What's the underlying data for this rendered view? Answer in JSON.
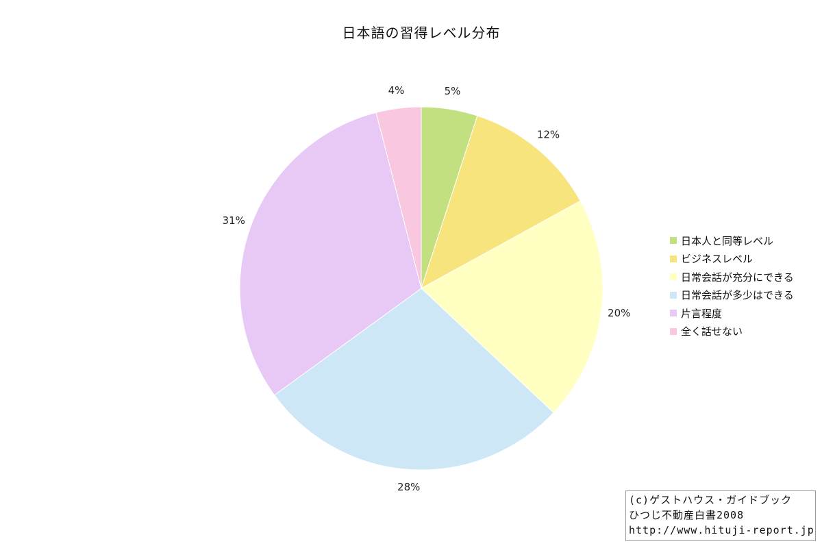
{
  "chart_data": {
    "type": "pie",
    "title": "日本語の習得レベル分布",
    "start_angle_deg": 0,
    "direction": "clockwise",
    "legend_position": "right",
    "slices": [
      {
        "name": "日本人と同等レベル",
        "value": 5,
        "label": "5%",
        "color": "#c2e07f"
      },
      {
        "name": "ビジネスレベル",
        "value": 12,
        "label": "12%",
        "color": "#f7e47c"
      },
      {
        "name": "日常会話が充分にできる",
        "value": 20,
        "label": "20%",
        "color": "#ffffc2"
      },
      {
        "name": "日常会話が多少はできる",
        "value": 28,
        "label": "28%",
        "color": "#cde7f7"
      },
      {
        "name": "片言程度",
        "value": 31,
        "label": "31%",
        "color": "#e8c9f5"
      },
      {
        "name": "全く話せない",
        "value": 4,
        "label": "4%",
        "color": "#f9c7e0"
      }
    ]
  },
  "credit": {
    "line1": "(c)ゲストハウス・ガイドブック",
    "line2": "ひつじ不動産白書2008",
    "line3": "http://www.hituji-report.jp/"
  }
}
